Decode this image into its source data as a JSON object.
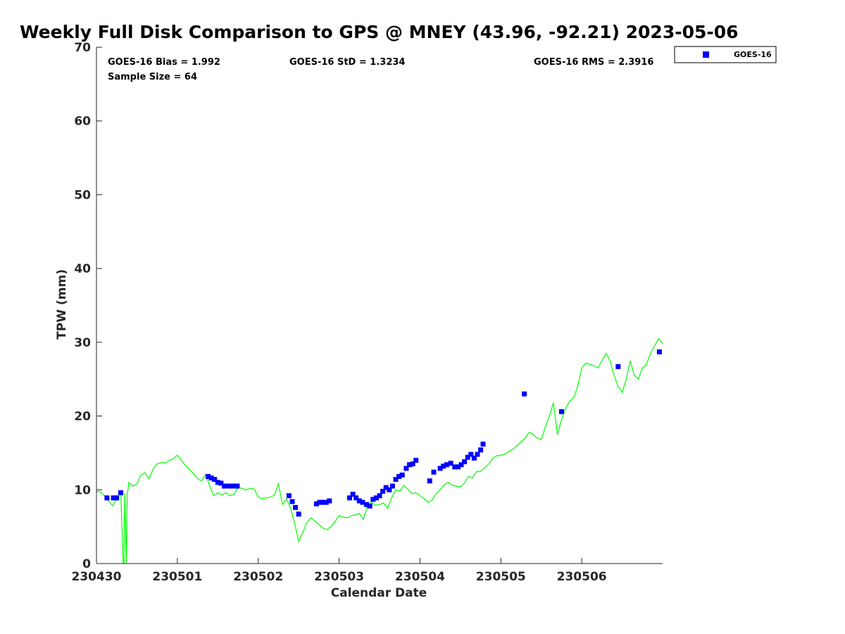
{
  "chart_data": {
    "type": "scatter",
    "title": "Weekly Full Disk Comparison to GPS @ MNEY (43.96, -92.21) 2023-05-06",
    "xlabel": "Calendar Date",
    "ylabel": "TPW (mm)",
    "xlim": [
      0,
      7
    ],
    "ylim": [
      0,
      70
    ],
    "x_unit": "days",
    "x_ticks": [
      0,
      1,
      2,
      3,
      4,
      5,
      6
    ],
    "x_tick_labels": [
      "230430",
      "230501",
      "230502",
      "230503",
      "230504",
      "230505",
      "230506"
    ],
    "y_ticks": [
      0,
      10,
      20,
      30,
      40,
      50,
      60,
      70
    ],
    "y_tick_labels": [
      "0",
      "10",
      "20",
      "30",
      "40",
      "50",
      "60",
      "70"
    ],
    "grid": false,
    "legend_position": "outside-top-right",
    "stats": {
      "bias": "GOES-16 Bias = 1.992",
      "std": "GOES-16 StD = 1.3234",
      "rms": "GOES-16 RMS = 2.3916",
      "sample": "Sample Size = 64"
    },
    "series": [
      {
        "name": "GOES-16",
        "kind": "scatter",
        "color": "#0000ff",
        "marker": "square",
        "x": [
          0.13,
          0.21,
          0.25,
          0.3,
          1.38,
          1.42,
          1.46,
          1.5,
          1.54,
          1.58,
          1.62,
          1.66,
          1.7,
          1.74,
          2.38,
          2.42,
          2.46,
          2.5,
          2.72,
          2.76,
          2.8,
          2.84,
          2.88,
          3.13,
          3.17,
          3.21,
          3.25,
          3.29,
          3.34,
          3.38,
          3.42,
          3.46,
          3.5,
          3.54,
          3.58,
          3.62,
          3.66,
          3.7,
          3.74,
          3.78,
          3.83,
          3.87,
          3.91,
          3.95,
          4.12,
          4.17,
          4.25,
          4.29,
          4.33,
          4.38,
          4.43,
          4.47,
          4.51,
          4.55,
          4.59,
          4.63,
          4.67,
          4.71,
          4.75,
          4.78,
          5.29,
          5.75,
          6.45,
          6.96
        ],
        "y": [
          8.9,
          8.9,
          8.9,
          9.6,
          11.8,
          11.6,
          11.4,
          11.0,
          10.9,
          10.5,
          10.5,
          10.5,
          10.5,
          10.5,
          9.2,
          8.4,
          7.6,
          6.7,
          8.1,
          8.3,
          8.3,
          8.3,
          8.5,
          8.9,
          9.4,
          8.9,
          8.5,
          8.3,
          8.0,
          7.8,
          8.7,
          8.9,
          9.2,
          9.8,
          10.3,
          10.0,
          10.5,
          11.4,
          11.8,
          12.0,
          12.9,
          13.4,
          13.5,
          14.0,
          11.2,
          12.4,
          12.9,
          13.2,
          13.4,
          13.6,
          13.1,
          13.1,
          13.4,
          13.8,
          14.4,
          14.8,
          14.3,
          14.8,
          15.4,
          16.2,
          23.0,
          20.6,
          26.7,
          28.7
        ]
      },
      {
        "name": "",
        "kind": "line",
        "color": "#00ff00",
        "x": [
          0,
          0.05,
          0.1,
          0.15,
          0.2,
          0.25,
          0.3,
          0.33,
          0.34,
          0.35,
          0.37,
          0.38,
          0.39,
          0.4,
          0.45,
          0.5,
          0.55,
          0.6,
          0.65,
          0.7,
          0.75,
          0.8,
          0.85,
          0.9,
          0.95,
          1.0,
          1.05,
          1.1,
          1.15,
          1.2,
          1.25,
          1.3,
          1.35,
          1.4,
          1.45,
          1.5,
          1.55,
          1.6,
          1.65,
          1.7,
          1.75,
          1.8,
          1.85,
          1.9,
          1.95,
          2.0,
          2.05,
          2.1,
          2.15,
          2.2,
          2.25,
          2.3,
          2.35,
          2.4,
          2.45,
          2.5,
          2.55,
          2.6,
          2.65,
          2.7,
          2.75,
          2.8,
          2.85,
          2.9,
          2.95,
          3.0,
          3.05,
          3.1,
          3.15,
          3.2,
          3.25,
          3.3,
          3.35,
          3.4,
          3.45,
          3.5,
          3.55,
          3.6,
          3.65,
          3.7,
          3.75,
          3.8,
          3.85,
          3.9,
          3.95,
          4.0,
          4.05,
          4.1,
          4.15,
          4.2,
          4.25,
          4.3,
          4.35,
          4.4,
          4.45,
          4.5,
          4.55,
          4.6,
          4.65,
          4.7,
          4.75,
          4.8,
          4.85,
          4.9,
          4.95,
          5.0,
          5.05,
          5.1,
          5.15,
          5.2,
          5.25,
          5.3,
          5.35,
          5.4,
          5.45,
          5.5,
          5.55,
          5.6,
          5.65,
          5.7,
          5.75,
          5.8,
          5.85,
          5.9,
          5.95,
          6.0,
          6.05,
          6.1,
          6.15,
          6.2,
          6.25,
          6.3,
          6.35,
          6.4,
          6.45,
          6.5,
          6.55,
          6.6,
          6.65,
          6.7,
          6.75,
          6.8,
          6.85,
          6.9,
          6.95,
          7.0
        ],
        "y": [
          9.8,
          9.7,
          9.2,
          8.5,
          7.8,
          8.8,
          9.8,
          0,
          0,
          9.5,
          0,
          9.5,
          10.0,
          11.0,
          10.5,
          10.8,
          12.0,
          12.3,
          11.5,
          12.8,
          13.5,
          13.7,
          13.6,
          14.0,
          14.2,
          14.7,
          14.0,
          13.3,
          12.7,
          12.2,
          11.5,
          11.2,
          12.1,
          10.5,
          9.2,
          9.6,
          9.3,
          9.6,
          9.2,
          9.4,
          10.3,
          10.2,
          10.0,
          10.2,
          10.1,
          9.0,
          8.8,
          8.9,
          9.0,
          9.3,
          10.8,
          8.0,
          8.8,
          7.5,
          5.5,
          3.0,
          4.2,
          5.5,
          6.2,
          5.8,
          5.3,
          4.8,
          4.6,
          5.0,
          5.7,
          6.5,
          6.3,
          6.2,
          6.5,
          6.6,
          6.8,
          6.0,
          7.8,
          8.3,
          7.9,
          8.0,
          8.2,
          7.5,
          8.9,
          10.0,
          9.8,
          10.6,
          10.1,
          9.5,
          9.6,
          9.2,
          8.8,
          8.3,
          8.6,
          9.5,
          10.0,
          10.7,
          11.0,
          10.6,
          10.5,
          10.4,
          10.9,
          11.8,
          11.6,
          12.5,
          12.5,
          13.0,
          13.5,
          14.3,
          14.6,
          14.7,
          14.8,
          15.2,
          15.5,
          16.0,
          16.5,
          17.0,
          17.8,
          17.5,
          17.0,
          16.8,
          18.5,
          20.0,
          21.8,
          17.5,
          19.5,
          21.0,
          22.0,
          22.5,
          24.0,
          26.5,
          27.2,
          27.0,
          26.8,
          26.5,
          27.5,
          28.5,
          27.5,
          25.5,
          24.0,
          23.2,
          25.0,
          27.5,
          25.5,
          25.0,
          26.5,
          27.0,
          28.5,
          29.5,
          30.5,
          29.8
        ]
      }
    ]
  }
}
